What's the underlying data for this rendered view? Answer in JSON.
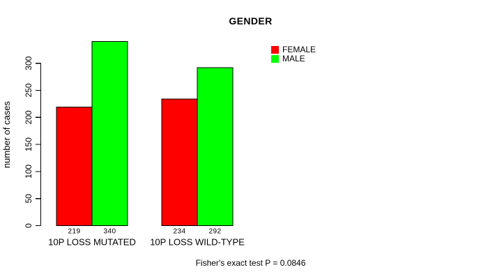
{
  "chart_data": {
    "type": "bar",
    "title": "GENDER",
    "categories": [
      "10P LOSS MUTATED",
      "10P LOSS WILD-TYPE"
    ],
    "series": [
      {
        "name": "FEMALE",
        "color": "#ff0000",
        "values": [
          219,
          234
        ]
      },
      {
        "name": "MALE",
        "color": "#00ff00",
        "values": [
          340,
          292
        ]
      }
    ],
    "bar_value_labels": [
      [
        219,
        340
      ],
      [
        234,
        292
      ]
    ],
    "xlabel": "",
    "ylabel": "number of cases",
    "ylim": [
      0,
      340
    ],
    "yticks": [
      0,
      50,
      100,
      150,
      200,
      250,
      300
    ],
    "grid": false,
    "legend_position": "top-right",
    "annotation": "Fisher's exact test P = 0.0846",
    "bar_border_color": "#000000",
    "background_color": "#ffffff"
  }
}
